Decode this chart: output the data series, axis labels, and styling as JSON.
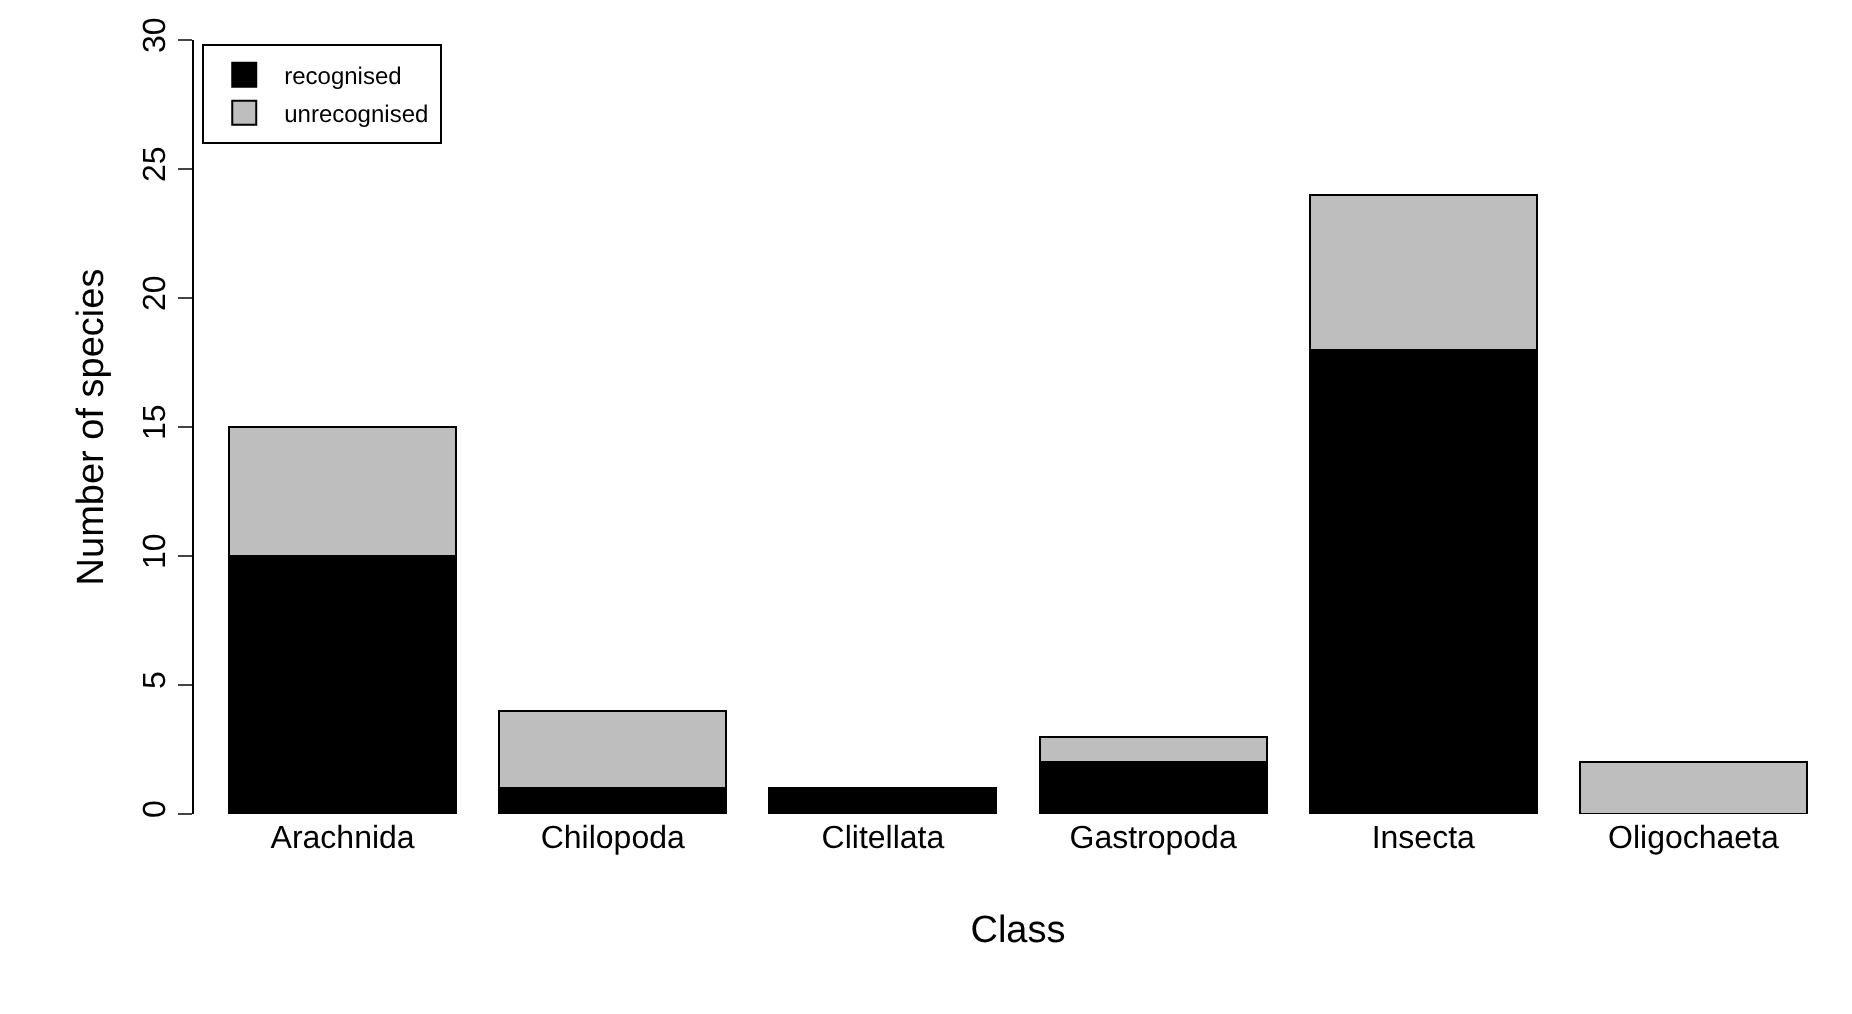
{
  "chart_data": {
    "type": "bar",
    "stacked": true,
    "xlabel": "Class",
    "ylabel": "Number of species",
    "categories": [
      "Arachnida",
      "Chilopoda",
      "Clitellata",
      "Gastropoda",
      "Insecta",
      "Oligochaeta"
    ],
    "series": [
      {
        "name": "recognised",
        "color": "#000000",
        "values": [
          10,
          1,
          1,
          2,
          18,
          0
        ]
      },
      {
        "name": "unrecognised",
        "color": "#bebebe",
        "values": [
          5,
          3,
          0,
          1,
          6,
          2
        ]
      }
    ],
    "ylim": [
      0,
      30
    ],
    "yticks": [
      0,
      5,
      10,
      15,
      20,
      25,
      30
    ],
    "grid": false,
    "legend": "top left"
  }
}
